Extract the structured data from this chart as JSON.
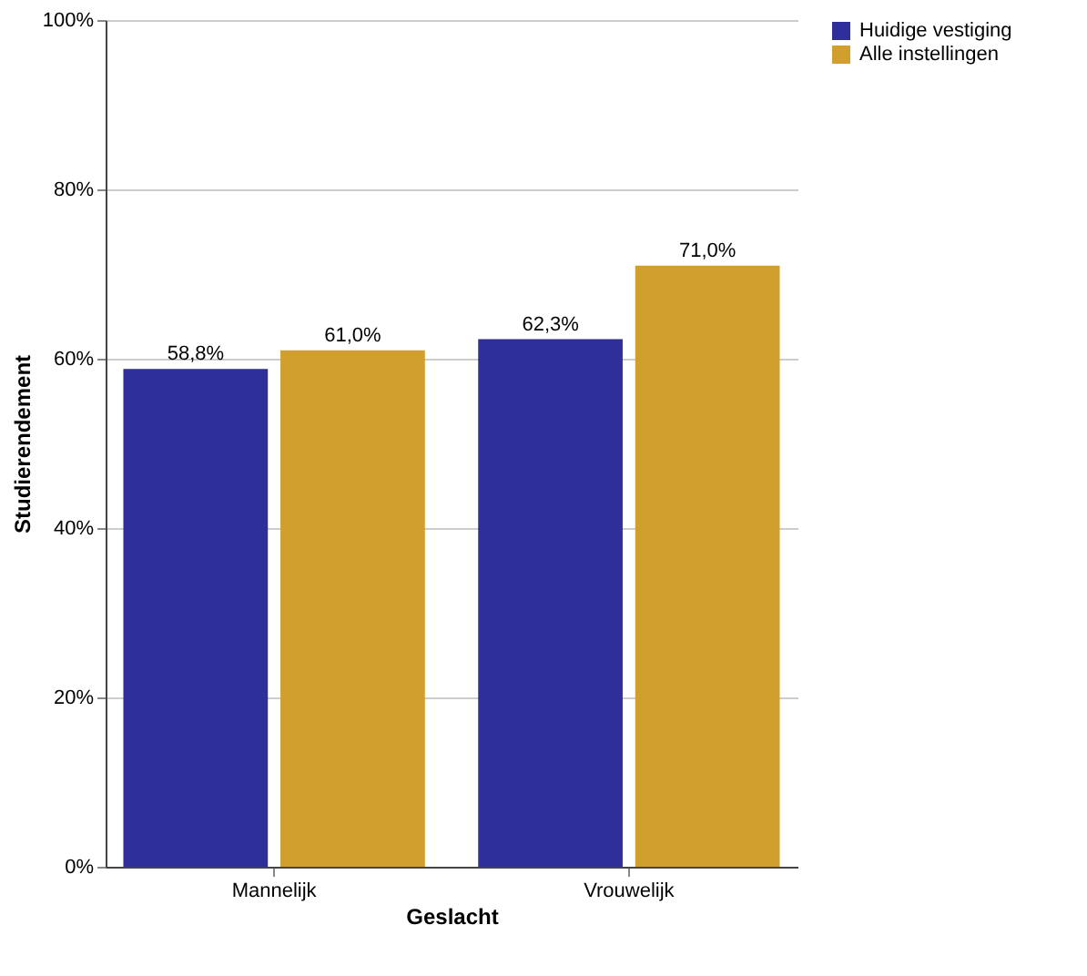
{
  "chart_data": {
    "type": "bar",
    "xlabel": "Geslacht",
    "ylabel": "Studierendement",
    "categories": [
      "Mannelijk",
      "Vrouwelijk"
    ],
    "series": [
      {
        "name": "Huidige vestiging",
        "color": "#2f2f9c",
        "values": [
          58.8,
          62.3
        ],
        "value_labels": [
          "58,8%",
          "62,3%"
        ]
      },
      {
        "name": "Alle instellingen",
        "color": "#d19f2e",
        "values": [
          61.0,
          71.0
        ],
        "value_labels": [
          "61,0%",
          "71,0%"
        ]
      }
    ],
    "ylim": [
      0,
      100
    ],
    "yticks": [
      {
        "value": 0,
        "label": "0%"
      },
      {
        "value": 20,
        "label": "20%"
      },
      {
        "value": 40,
        "label": "40%"
      },
      {
        "value": 60,
        "label": "60%"
      },
      {
        "value": 80,
        "label": "80%"
      },
      {
        "value": 100,
        "label": "100%"
      }
    ],
    "grid": "y",
    "legend": "top right"
  }
}
